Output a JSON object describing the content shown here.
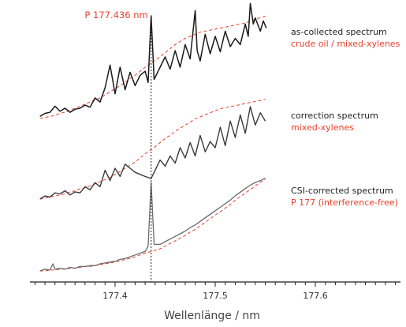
{
  "chart_data": {
    "type": "line",
    "xlabel": "Wellenlänge / nm",
    "xlim": [
      177.315,
      177.685
    ],
    "x_ticks": [
      "177.4",
      "177.5",
      "177.6"
    ],
    "x_tick_values": [
      177.4,
      177.5,
      177.6
    ],
    "grid": false,
    "peak_marker": {
      "label": "P 177.436 nm",
      "x": 177.436
    },
    "series": [
      {
        "title": "as-collected spectrum",
        "subtitle": "crude oil / mixed-xylenes",
        "x": [
          177.325,
          177.33,
          177.335,
          177.34,
          177.345,
          177.35,
          177.355,
          177.36,
          177.365,
          177.37,
          177.375,
          177.38,
          177.385,
          177.39,
          177.395,
          177.4,
          177.405,
          177.41,
          177.415,
          177.42,
          177.425,
          177.43,
          177.433,
          177.436,
          177.439,
          177.445,
          177.45,
          177.455,
          177.46,
          177.465,
          177.47,
          177.475,
          177.48,
          177.482,
          177.485,
          177.49,
          177.495,
          177.5,
          177.505,
          177.51,
          177.515,
          177.52,
          177.525,
          177.53,
          177.533,
          177.535,
          177.538,
          177.54,
          177.545,
          177.548,
          177.551
        ],
        "y": [
          0.02,
          0.05,
          0.06,
          0.12,
          0.07,
          0.1,
          0.06,
          0.09,
          0.1,
          0.13,
          0.11,
          0.2,
          0.16,
          0.3,
          0.52,
          0.24,
          0.5,
          0.28,
          0.45,
          0.32,
          0.42,
          0.46,
          0.35,
          1.0,
          0.38,
          0.5,
          0.6,
          0.48,
          0.66,
          0.5,
          0.72,
          0.58,
          1.05,
          0.66,
          0.56,
          0.82,
          0.63,
          0.8,
          0.65,
          0.85,
          0.7,
          0.78,
          0.72,
          0.92,
          0.8,
          1.12,
          0.92,
          0.98,
          0.85,
          0.95,
          0.88
        ],
        "baseline": [
          0.0,
          0.01,
          0.02,
          0.03,
          0.05,
          0.06,
          0.08,
          0.1,
          0.12,
          0.14,
          0.16,
          0.18,
          0.2,
          0.23,
          0.26,
          0.29,
          0.32,
          0.35,
          0.39,
          0.42,
          0.46,
          0.5,
          0.52,
          0.54,
          0.56,
          0.6,
          0.64,
          0.68,
          0.72,
          0.75,
          0.78,
          0.8,
          0.82,
          0.83,
          0.84,
          0.85,
          0.86,
          0.87,
          0.88,
          0.89,
          0.9,
          0.91,
          0.92,
          0.93,
          0.94,
          0.95,
          0.96,
          0.97,
          0.98,
          0.99,
          1.0
        ]
      },
      {
        "title": "correction spectrum",
        "subtitle": "mixed-xylenes",
        "x": [
          177.325,
          177.33,
          177.335,
          177.34,
          177.345,
          177.35,
          177.355,
          177.36,
          177.365,
          177.37,
          177.375,
          177.38,
          177.385,
          177.39,
          177.395,
          177.4,
          177.405,
          177.41,
          177.415,
          177.42,
          177.425,
          177.43,
          177.436,
          177.44,
          177.445,
          177.45,
          177.455,
          177.46,
          177.465,
          177.47,
          177.475,
          177.48,
          177.485,
          177.49,
          177.495,
          177.5,
          177.505,
          177.51,
          177.515,
          177.52,
          177.525,
          177.53,
          177.535,
          177.54,
          177.545,
          177.55
        ],
        "y": [
          0.0,
          0.03,
          0.02,
          0.06,
          0.05,
          0.08,
          0.04,
          0.07,
          0.06,
          0.12,
          0.09,
          0.16,
          0.12,
          0.28,
          0.18,
          0.3,
          0.22,
          0.34,
          0.3,
          0.26,
          0.24,
          0.22,
          0.2,
          0.28,
          0.38,
          0.32,
          0.42,
          0.35,
          0.5,
          0.4,
          0.55,
          0.42,
          0.62,
          0.46,
          0.56,
          0.5,
          0.7,
          0.52,
          0.76,
          0.6,
          0.82,
          0.64,
          0.9,
          0.72,
          0.84,
          0.76
        ],
        "baseline": [
          0.0,
          0.01,
          0.02,
          0.03,
          0.04,
          0.05,
          0.07,
          0.08,
          0.1,
          0.11,
          0.13,
          0.15,
          0.17,
          0.19,
          0.21,
          0.24,
          0.27,
          0.3,
          0.33,
          0.36,
          0.4,
          0.44,
          0.48,
          0.51,
          0.55,
          0.59,
          0.62,
          0.66,
          0.69,
          0.72,
          0.75,
          0.78,
          0.8,
          0.82,
          0.84,
          0.86,
          0.88,
          0.89,
          0.9,
          0.91,
          0.92,
          0.93,
          0.94,
          0.95,
          0.96,
          0.97
        ]
      },
      {
        "title": "CSI-corrected spectrum",
        "subtitle": "P 177 (interference-free)",
        "x": [
          177.325,
          177.33,
          177.335,
          177.338,
          177.34,
          177.345,
          177.35,
          177.355,
          177.36,
          177.365,
          177.37,
          177.375,
          177.38,
          177.385,
          177.39,
          177.395,
          177.4,
          177.405,
          177.41,
          177.415,
          177.42,
          177.425,
          177.43,
          177.433,
          177.436,
          177.439,
          177.445,
          177.45,
          177.455,
          177.46,
          177.465,
          177.47,
          177.475,
          177.48,
          177.485,
          177.49,
          177.495,
          177.5,
          177.505,
          177.51,
          177.515,
          177.52,
          177.525,
          177.53,
          177.535,
          177.54,
          177.545,
          177.55
        ],
        "y": [
          0.0,
          0.02,
          0.01,
          0.08,
          0.02,
          0.03,
          0.02,
          0.04,
          0.03,
          0.05,
          0.05,
          0.06,
          0.06,
          0.08,
          0.09,
          0.1,
          0.11,
          0.13,
          0.14,
          0.16,
          0.18,
          0.2,
          0.22,
          0.28,
          1.0,
          0.3,
          0.3,
          0.33,
          0.36,
          0.39,
          0.42,
          0.45,
          0.49,
          0.52,
          0.56,
          0.6,
          0.64,
          0.68,
          0.72,
          0.76,
          0.8,
          0.85,
          0.89,
          0.93,
          0.97,
          1.0,
          1.02,
          1.05
        ],
        "baseline": [
          0.0,
          0.0,
          0.01,
          0.01,
          0.01,
          0.02,
          0.02,
          0.03,
          0.03,
          0.04,
          0.05,
          0.05,
          0.06,
          0.07,
          0.08,
          0.09,
          0.1,
          0.11,
          0.13,
          0.14,
          0.16,
          0.18,
          0.2,
          0.21,
          0.22,
          0.23,
          0.25,
          0.28,
          0.31,
          0.34,
          0.37,
          0.4,
          0.44,
          0.47,
          0.51,
          0.55,
          0.59,
          0.63,
          0.67,
          0.71,
          0.75,
          0.8,
          0.84,
          0.88,
          0.92,
          0.96,
          1.0,
          1.04
        ]
      }
    ],
    "colors": {
      "as_collected": "#1a1a1a",
      "correction": "#3a3a3a",
      "corrected": "#6a6a6a",
      "baseline": "#e8402a",
      "label_red": "#e8402a",
      "axis": "#222222",
      "marker": "#222222"
    }
  }
}
